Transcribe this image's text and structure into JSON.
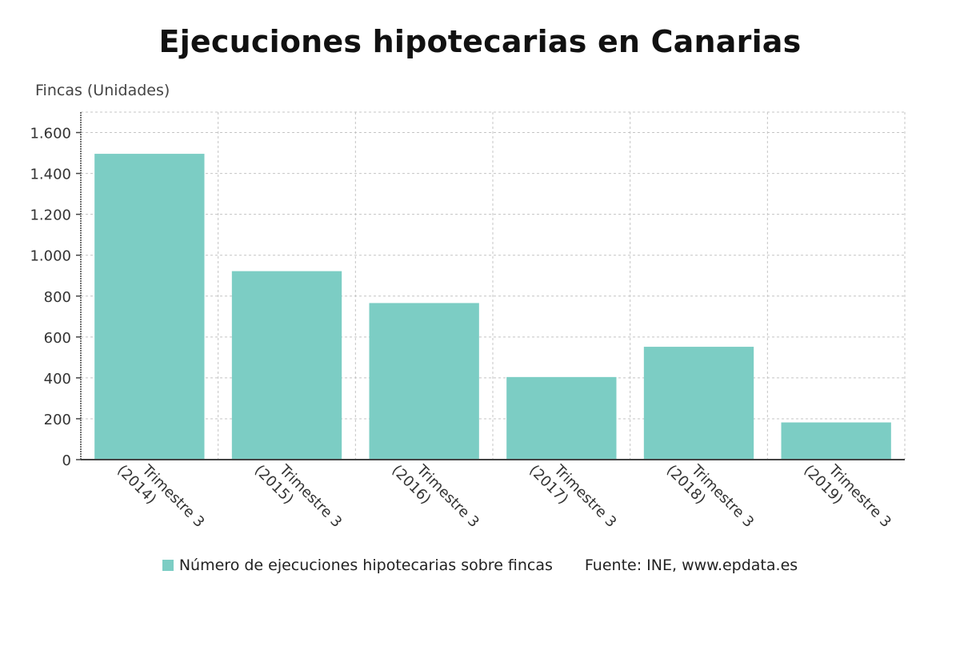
{
  "chart_data": {
    "type": "bar",
    "title": "Ejecuciones hipotecarias en Canarias",
    "ylabel": "Fincas (Unidades)",
    "categories": [
      "Trimestre 3 (2014)",
      "Trimestre 3 (2015)",
      "Trimestre 3 (2016)",
      "Trimestre 3 (2017)",
      "Trimestre 3 (2018)",
      "Trimestre 3 (2019)"
    ],
    "category_lines": [
      [
        "Trimestre 3",
        "(2014)"
      ],
      [
        "Trimestre 3",
        "(2015)"
      ],
      [
        "Trimestre 3",
        "(2016)"
      ],
      [
        "Trimestre 3",
        "(2017)"
      ],
      [
        "Trimestre 3",
        "(2018)"
      ],
      [
        "Trimestre 3",
        "(2019)"
      ]
    ],
    "series": [
      {
        "name": "Número de ejecuciones hipotecarias sobre fincas",
        "values": [
          1496,
          922,
          766,
          404,
          552,
          182
        ]
      }
    ],
    "ylim": [
      0,
      1700
    ],
    "yticks": [
      0,
      200,
      400,
      600,
      800,
      1000,
      1200,
      1400,
      1600
    ],
    "ytick_labels": [
      "0",
      "200",
      "400",
      "600",
      "800",
      "1.000",
      "1.200",
      "1.400",
      "1.600"
    ],
    "grid": true,
    "legend_position": "bottom",
    "source": "Fuente: INE, www.epdata.es",
    "bar_color": "#7ccdc4"
  }
}
